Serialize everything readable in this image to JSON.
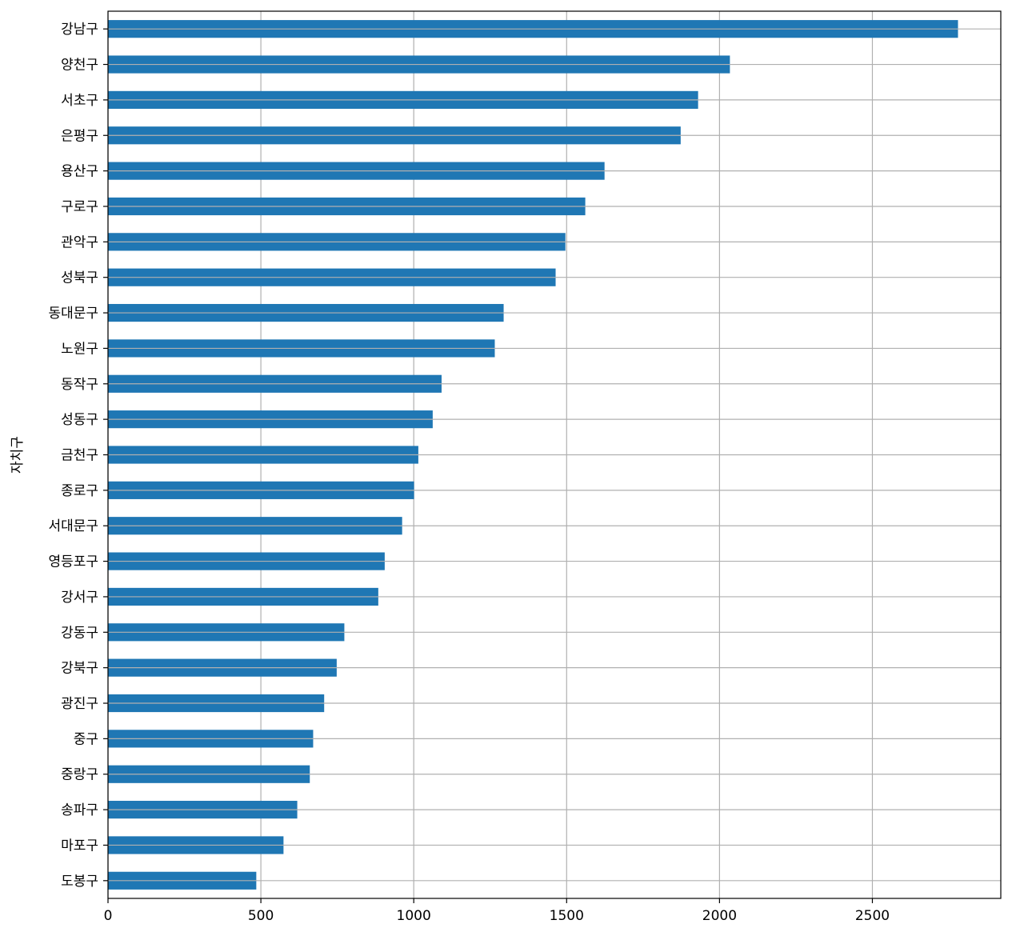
{
  "chart_data": {
    "type": "bar",
    "orientation": "horizontal",
    "categories": [
      "강남구",
      "양천구",
      "서초구",
      "은평구",
      "용산구",
      "구로구",
      "관악구",
      "성북구",
      "동대문구",
      "노원구",
      "동작구",
      "성동구",
      "금천구",
      "종로구",
      "서대문구",
      "영등포구",
      "강서구",
      "강동구",
      "강북구",
      "광진구",
      "중구",
      "중랑구",
      "송파구",
      "마포구",
      "도봉구"
    ],
    "values": [
      2780,
      2034,
      1930,
      1873,
      1624,
      1561,
      1496,
      1464,
      1294,
      1265,
      1091,
      1062,
      1015,
      1001,
      962,
      905,
      884,
      773,
      748,
      707,
      671,
      660,
      619,
      574,
      485
    ],
    "xlabel": "",
    "ylabel": "자치구",
    "xlim": [
      0,
      2920
    ],
    "xticks": [
      "0",
      "500",
      "1000",
      "1500",
      "2000",
      "2500"
    ],
    "grid": true,
    "bar_color": "#1f77b4",
    "grid_color": "#b0b0b0"
  }
}
